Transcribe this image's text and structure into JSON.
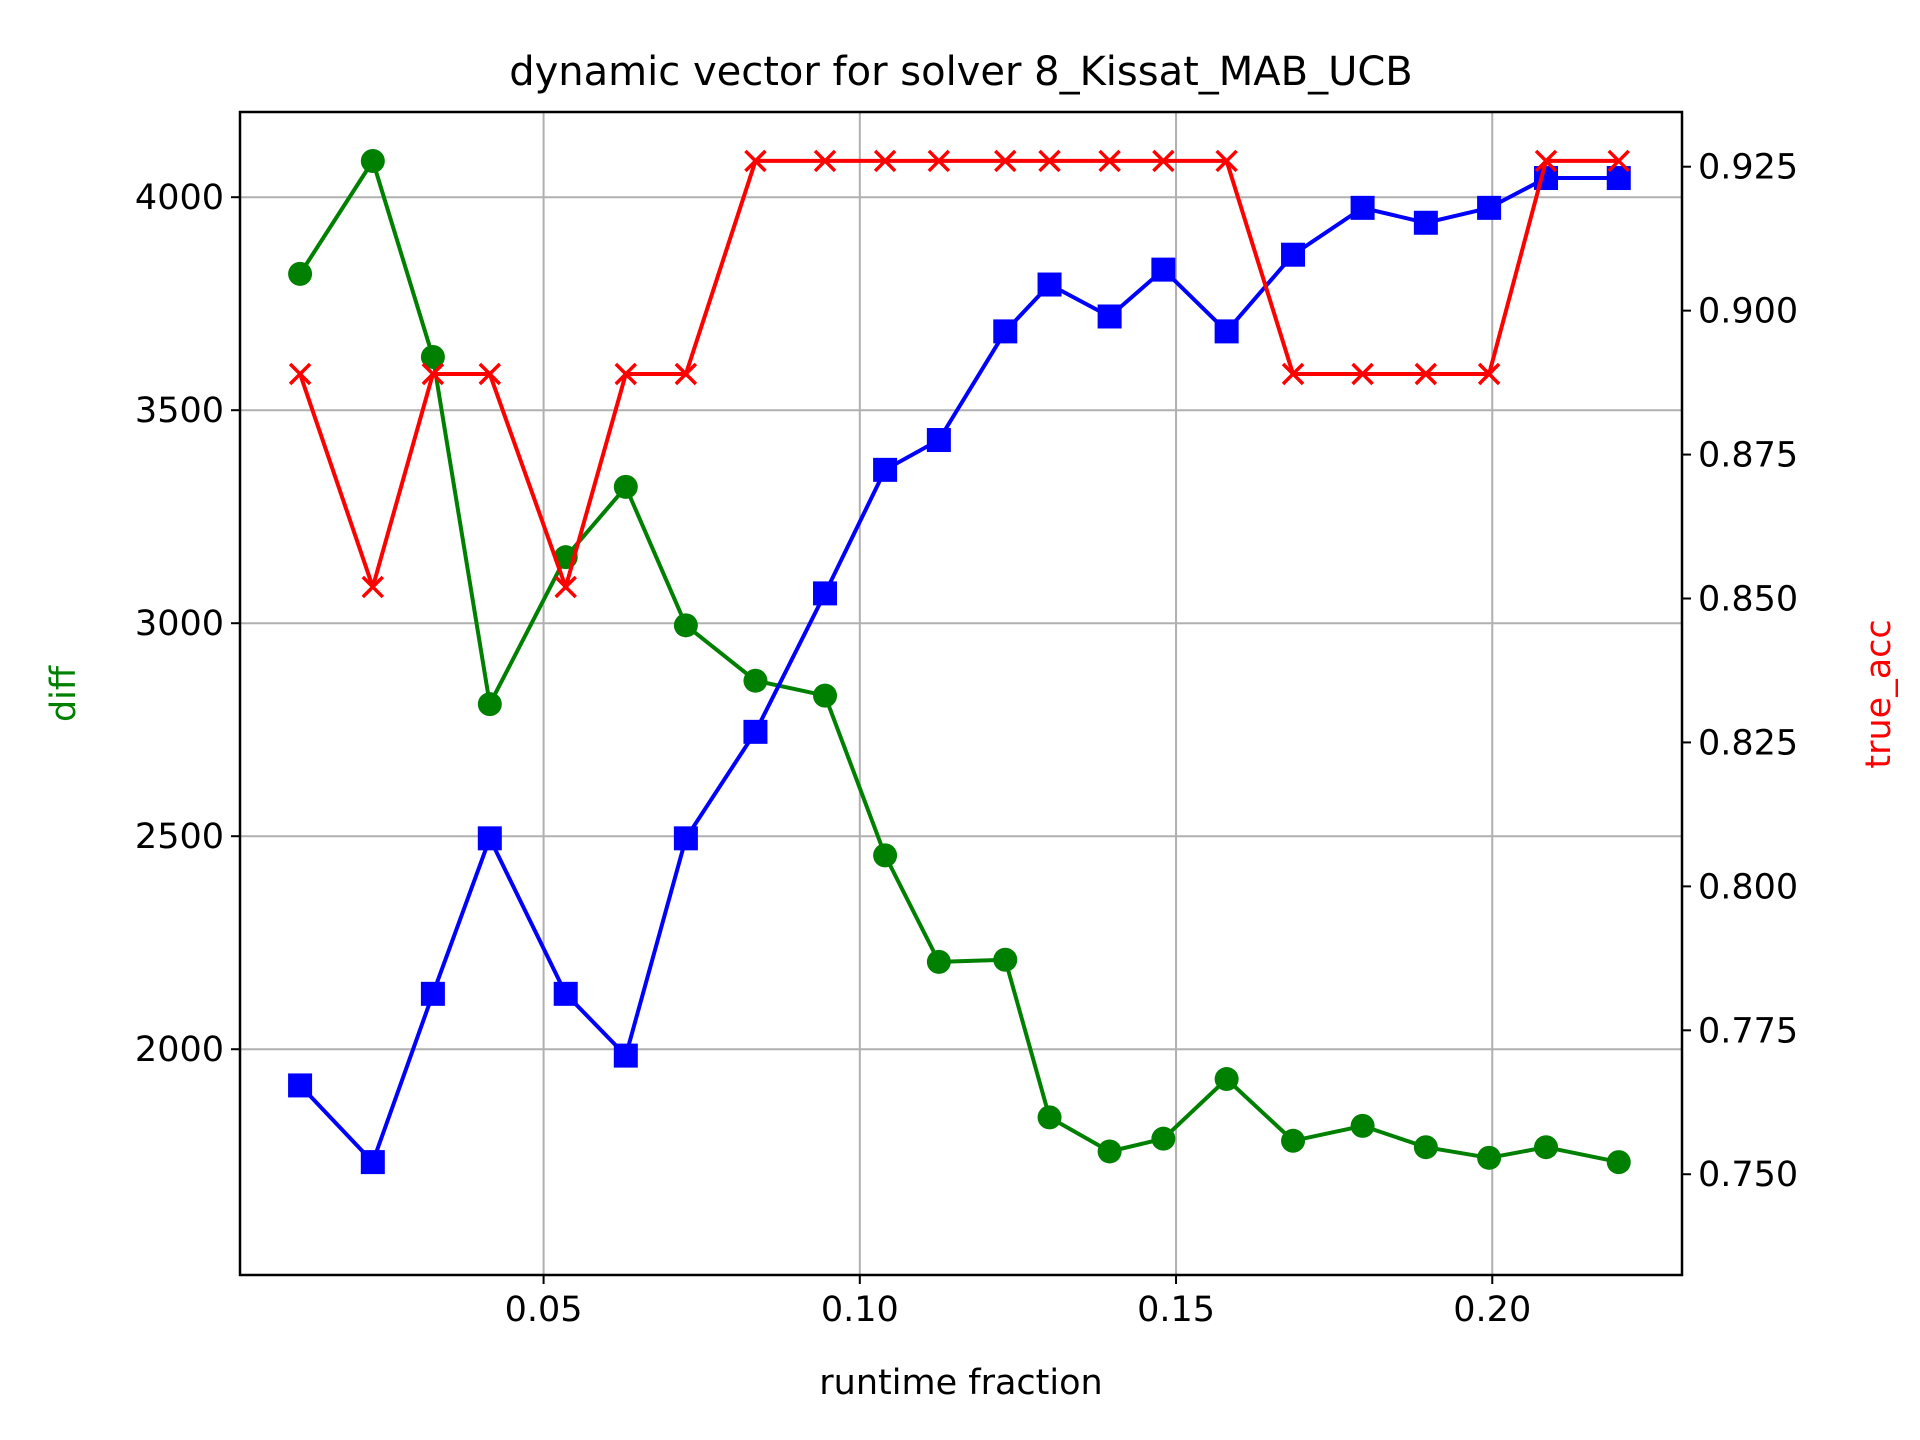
{
  "chart_data": {
    "type": "line",
    "title": "dynamic vector for solver 8_Kissat_MAB_UCB",
    "xlabel": "runtime fraction",
    "ylabel_left": "diff",
    "ylabel_right": "true_acc",
    "colors": {
      "left_label": "#008000",
      "right_label": "#ff0000",
      "grid": "#b0b0b0",
      "axes": "#000000"
    },
    "x": [
      0.0115,
      0.023,
      0.0325,
      0.0415,
      0.0535,
      0.063,
      0.0725,
      0.0835,
      0.0945,
      0.104,
      0.1125,
      0.123,
      0.13,
      0.1395,
      0.148,
      0.158,
      0.1685,
      0.1795,
      0.1895,
      0.1995,
      0.2085,
      0.22
    ],
    "xlim": [
      0.002,
      0.23
    ],
    "ylim_left": [
      1470,
      4200
    ],
    "ylim_right": [
      0.7325,
      0.9345
    ],
    "xticks": [
      {
        "value": 0.05,
        "label": "0.05"
      },
      {
        "value": 0.1,
        "label": "0.10"
      },
      {
        "value": 0.15,
        "label": "0.15"
      },
      {
        "value": 0.2,
        "label": "0.20"
      }
    ],
    "yticks_left": [
      {
        "value": 2000,
        "label": "2000"
      },
      {
        "value": 2500,
        "label": "2500"
      },
      {
        "value": 3000,
        "label": "3000"
      },
      {
        "value": 3500,
        "label": "3500"
      },
      {
        "value": 4000,
        "label": "4000"
      }
    ],
    "yticks_right": [
      {
        "value": 0.75,
        "label": "0.750"
      },
      {
        "value": 0.775,
        "label": "0.775"
      },
      {
        "value": 0.8,
        "label": "0.800"
      },
      {
        "value": 0.825,
        "label": "0.825"
      },
      {
        "value": 0.85,
        "label": "0.850"
      },
      {
        "value": 0.875,
        "label": "0.875"
      },
      {
        "value": 0.9,
        "label": "0.900"
      },
      {
        "value": 0.925,
        "label": "0.925"
      }
    ],
    "grid": true,
    "series": [
      {
        "name": "diff (green)",
        "axis": "left",
        "color": "#008000",
        "marker": "circle",
        "values": [
          3820,
          4085,
          3625,
          2810,
          3155,
          3320,
          2995,
          2865,
          2830,
          2455,
          2205,
          2210,
          1840,
          1760,
          1790,
          1930,
          1785,
          1820,
          1770,
          1745,
          1770,
          1735
        ]
      },
      {
        "name": "diff (blue)",
        "axis": "left",
        "color": "#0000ff",
        "marker": "square",
        "values": [
          1915,
          1735,
          2130,
          2495,
          2130,
          1985,
          2495,
          2745,
          3070,
          3360,
          3430,
          3685,
          3795,
          3720,
          3830,
          3685,
          3865,
          3975,
          3940,
          3975,
          4045,
          4045
        ]
      },
      {
        "name": "true_acc",
        "axis": "right",
        "color": "#ff0000",
        "marker": "x",
        "values": [
          0.889,
          0.852,
          0.889,
          0.889,
          0.852,
          0.889,
          0.889,
          0.926,
          0.926,
          0.926,
          0.926,
          0.926,
          0.926,
          0.926,
          0.926,
          0.926,
          0.889,
          0.889,
          0.889,
          0.889,
          0.926,
          0.926
        ]
      }
    ]
  }
}
